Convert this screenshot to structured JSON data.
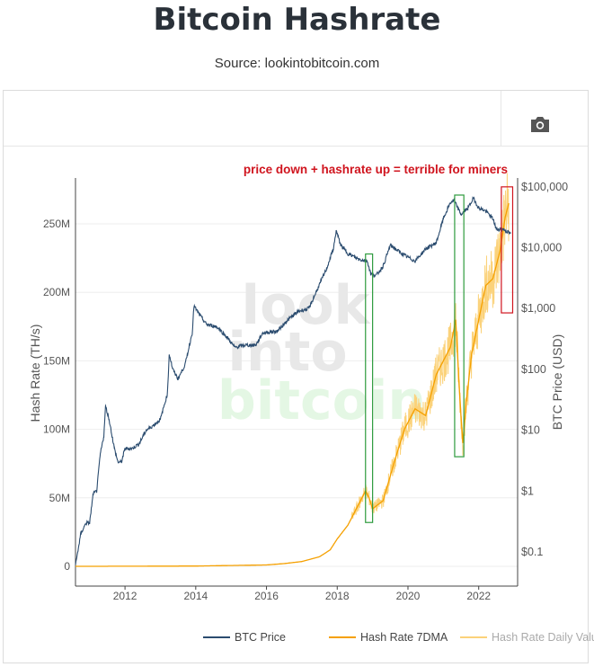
{
  "header": {
    "title": "Bitcoin Hashrate",
    "subtitle": "Source: lookintobitcoin.com"
  },
  "toolbar": {
    "camera_icon": "camera-icon"
  },
  "watermark": {
    "line1": "look",
    "line2": "into",
    "line3": "bitcoin"
  },
  "annotation": {
    "text": "price down + hashrate up = terrible for miners",
    "color": "#d0141e"
  },
  "legend": [
    {
      "label": "BTC Price",
      "color": "#2b4c6f"
    },
    {
      "label": "Hash Rate 7DMA",
      "color": "#f5a000"
    },
    {
      "label": "Hash Rate Daily Values",
      "color": "#fbd27a"
    }
  ],
  "chart_data": {
    "type": "line",
    "title": "Bitcoin Hashrate",
    "xlabel": "",
    "ylabel": "Hash Rate (TH/s)",
    "y2label": "BTC Price (USD)",
    "xlim": [
      2010.6,
      2023.1
    ],
    "ylim": [
      0,
      280000000
    ],
    "y2lim_log10": [
      -1.5,
      5.15
    ],
    "y2scale": "log",
    "x_ticks": [
      "2012",
      "2014",
      "2016",
      "2018",
      "2020",
      "2022"
    ],
    "y_ticks": [
      {
        "value": 0,
        "label": "0"
      },
      {
        "value": 50000000,
        "label": "50M"
      },
      {
        "value": 100000000,
        "label": "100M"
      },
      {
        "value": 150000000,
        "label": "150M"
      },
      {
        "value": 200000000,
        "label": "200M"
      },
      {
        "value": 250000000,
        "label": "250M"
      }
    ],
    "y2_ticks": [
      {
        "value": 0.1,
        "label": "$0.1"
      },
      {
        "value": 1,
        "label": "$1"
      },
      {
        "value": 10,
        "label": "$10"
      },
      {
        "value": 100,
        "label": "$100"
      },
      {
        "value": 1000,
        "label": "$1,000"
      },
      {
        "value": 10000,
        "label": "$10,000"
      },
      {
        "value": 100000,
        "label": "$100,000"
      }
    ],
    "grid": true,
    "legend_position": "bottom-right",
    "series": [
      {
        "name": "BTC Price",
        "axis": "right-log",
        "color": "#2b4c6f",
        "x": [
          2010.6,
          2010.75,
          2010.9,
          2011.0,
          2011.1,
          2011.2,
          2011.3,
          2011.4,
          2011.45,
          2011.55,
          2011.7,
          2011.8,
          2011.9,
          2012.0,
          2012.2,
          2012.4,
          2012.6,
          2012.8,
          2013.0,
          2013.2,
          2013.25,
          2013.35,
          2013.5,
          2013.7,
          2013.9,
          2013.95,
          2014.1,
          2014.3,
          2014.6,
          2014.9,
          2015.1,
          2015.4,
          2015.7,
          2015.9,
          2016.3,
          2016.6,
          2016.9,
          2017.2,
          2017.5,
          2017.7,
          2017.9,
          2017.97,
          2018.1,
          2018.3,
          2018.6,
          2018.85,
          2018.95,
          2019.1,
          2019.3,
          2019.5,
          2019.7,
          2019.9,
          2020.2,
          2020.5,
          2020.8,
          2021.0,
          2021.2,
          2021.3,
          2021.5,
          2021.7,
          2021.85,
          2022.0,
          2022.2,
          2022.4,
          2022.5,
          2022.7,
          2022.9
        ],
        "y": [
          0.06,
          0.2,
          0.3,
          0.3,
          0.9,
          1.0,
          4,
          8,
          25,
          15,
          5,
          3,
          3,
          5,
          5,
          6,
          10,
          12,
          15,
          40,
          180,
          100,
          70,
          120,
          400,
          1100,
          800,
          550,
          500,
          330,
          230,
          250,
          250,
          400,
          420,
          650,
          900,
          1000,
          2500,
          4500,
          10000,
          19000,
          11000,
          8000,
          6500,
          6000,
          3700,
          3500,
          5000,
          11000,
          9000,
          7500,
          6000,
          9500,
          12000,
          30000,
          55000,
          60000,
          35000,
          45000,
          65000,
          45000,
          40000,
          30000,
          20000,
          20000,
          17000
        ]
      },
      {
        "name": "Hash Rate 7DMA",
        "axis": "left",
        "color": "#f5a000",
        "x": [
          2010.6,
          2012.0,
          2014.0,
          2016.0,
          2016.5,
          2017.0,
          2017.5,
          2017.8,
          2018.0,
          2018.3,
          2018.6,
          2018.8,
          2018.9,
          2019.0,
          2019.3,
          2019.6,
          2019.9,
          2020.2,
          2020.5,
          2020.8,
          2021.0,
          2021.2,
          2021.35,
          2021.45,
          2021.55,
          2021.65,
          2021.8,
          2022.0,
          2022.2,
          2022.4,
          2022.6,
          2022.75,
          2022.85
        ],
        "y": [
          0,
          50000,
          200000,
          1000000,
          2000000,
          3500000,
          7000000,
          12000000,
          20000000,
          30000000,
          45000000,
          55000000,
          50000000,
          42000000,
          48000000,
          75000000,
          100000000,
          115000000,
          110000000,
          140000000,
          150000000,
          160000000,
          180000000,
          130000000,
          90000000,
          120000000,
          155000000,
          180000000,
          205000000,
          210000000,
          230000000,
          255000000,
          265000000
        ]
      },
      {
        "name": "Hash Rate Daily Values",
        "axis": "left",
        "color": "#fbd27a"
      }
    ],
    "annotation_boxes": [
      {
        "x_start": 2018.8,
        "x_end": 2019.0,
        "y_top": 228000000,
        "y_bottom": 32000000,
        "color": "#2e9b3e"
      },
      {
        "x_start": 2021.32,
        "x_end": 2021.58,
        "y_top": 271000000,
        "y_bottom": 80000000,
        "color": "#2e9b3e"
      },
      {
        "x_start": 2022.64,
        "x_end": 2022.96,
        "y_top": 277000000,
        "y_bottom": 185000000,
        "color": "#d0141e"
      }
    ]
  }
}
